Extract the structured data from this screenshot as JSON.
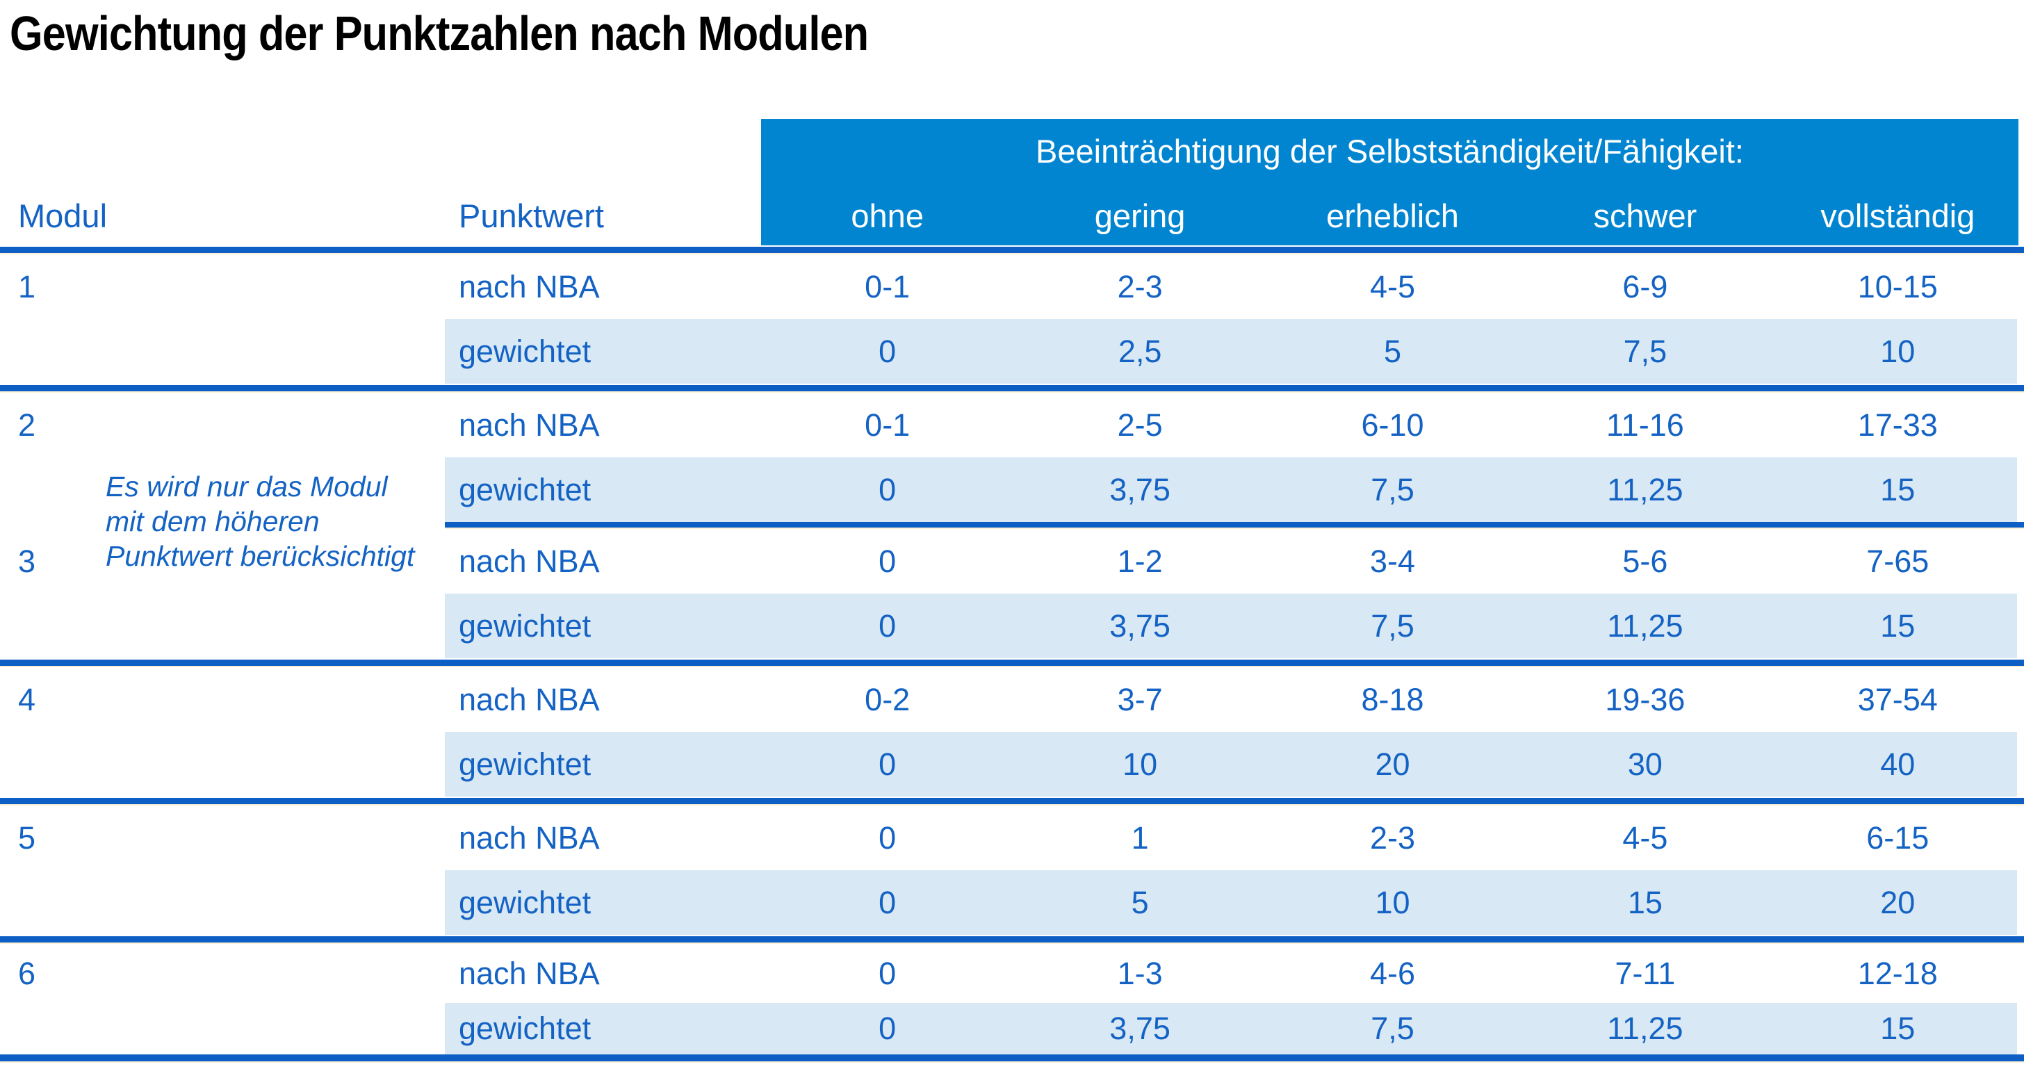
{
  "title": "Gewichtung der Punktzahlen nach Modulen",
  "table": {
    "header": {
      "modul": "Modul",
      "punktwert": "Punktwert",
      "group_title": "Beeinträchtigung der Selbstständigkeit/Fähigkeit:",
      "levels": [
        "ohne",
        "gering",
        "erheblich",
        "schwer",
        "vollständig"
      ]
    },
    "row_labels": {
      "nba": "nach NBA",
      "weighted": "gewichtet"
    },
    "note": {
      "lines": [
        "Es wird nur das Modul",
        "mit dem höheren",
        "Punktwert berücksichtigt"
      ]
    },
    "modules": [
      {
        "id": "1",
        "nba": [
          "0-1",
          "2-3",
          "4-5",
          "6-9",
          "10-15"
        ],
        "weighted": [
          "0",
          "2,5",
          "5",
          "7,5",
          "10"
        ]
      },
      {
        "id": "2",
        "nba": [
          "0-1",
          "2-5",
          "6-10",
          "11-16",
          "17-33"
        ],
        "weighted": [
          "0",
          "3,75",
          "7,5",
          "11,25",
          "15"
        ]
      },
      {
        "id": "3",
        "nba": [
          "0",
          "1-2",
          "3-4",
          "5-6",
          "7-65"
        ],
        "weighted": [
          "0",
          "3,75",
          "7,5",
          "11,25",
          "15"
        ]
      },
      {
        "id": "4",
        "nba": [
          "0-2",
          "3-7",
          "8-18",
          "19-36",
          "37-54"
        ],
        "weighted": [
          "0",
          "10",
          "20",
          "30",
          "40"
        ]
      },
      {
        "id": "5",
        "nba": [
          "0",
          "1",
          "2-3",
          "4-5",
          "6-15"
        ],
        "weighted": [
          "0",
          "5",
          "10",
          "15",
          "20"
        ]
      },
      {
        "id": "6",
        "nba": [
          "0",
          "1-3",
          "4-6",
          "7-11",
          "12-18"
        ],
        "weighted": [
          "0",
          "3,75",
          "7,5",
          "11,25",
          "15"
        ]
      }
    ],
    "colors": {
      "header_bg": "#0285D0",
      "header_text": "#FFFFFF",
      "text_blue": "#1463C4",
      "row_alt_bg": "#D9E8F5",
      "separator_line": "#0D5FC5",
      "cream_line": "#FBF1D6",
      "title_text": "#000000"
    }
  }
}
